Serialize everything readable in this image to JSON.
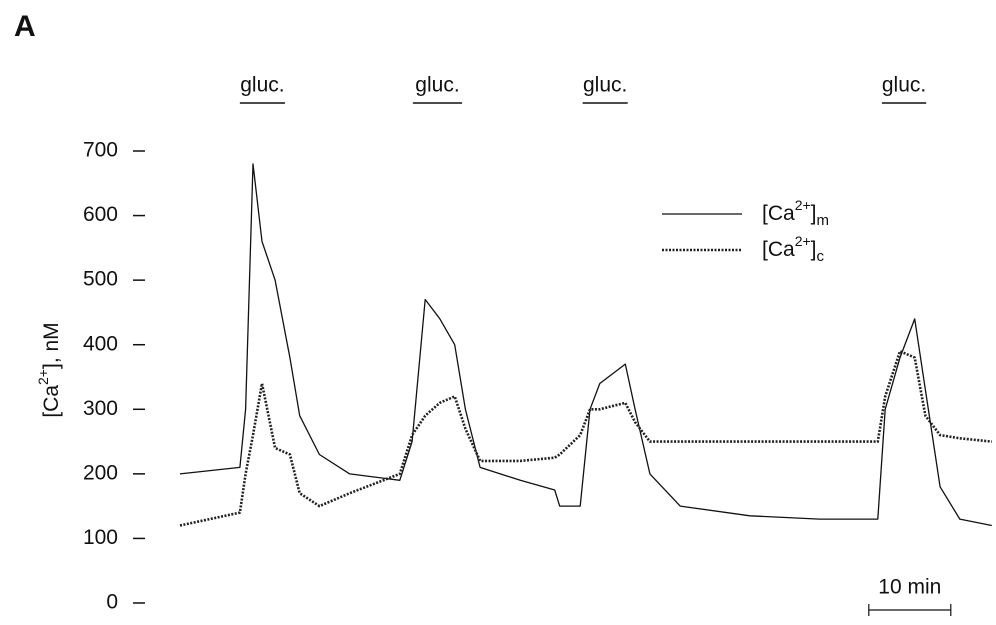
{
  "chart_data": {
    "type": "line",
    "panel_label": "A",
    "y_label": "[Ca2+], nM",
    "ylim": [
      0,
      700
    ],
    "yticks": [
      0,
      100,
      200,
      300,
      400,
      500,
      600,
      700
    ],
    "xlim": [
      0,
      99
    ],
    "x": [
      0,
      7.3,
      8,
      8.9,
      10,
      11.6,
      13.4,
      14.6,
      17,
      20.7,
      26.8,
      28.3,
      29.9,
      31.7,
      33.5,
      34.8,
      36.6,
      41.5,
      45.7,
      46.3,
      48.8,
      50,
      51.2,
      54.3,
      55.5,
      57.3,
      61,
      69.5,
      78,
      85.1,
      86,
      87.8,
      89.6,
      90.9,
      92.7,
      95.1,
      99
    ],
    "series": [
      {
        "name": "[Ca2+]m",
        "color": "#111111",
        "style": "solid",
        "values": [
          200,
          210,
          300,
          680,
          560,
          500,
          380,
          290,
          230,
          200,
          190,
          250,
          470,
          440,
          400,
          300,
          210,
          190,
          175,
          150,
          150,
          300,
          340,
          370,
          300,
          200,
          150,
          135,
          130,
          130,
          300,
          380,
          440,
          330,
          180,
          130,
          120
        ]
      },
      {
        "name": "[Ca2+]c",
        "color": "#222222",
        "style": "dotted",
        "values": [
          120,
          140,
          200,
          260,
          340,
          240,
          230,
          170,
          150,
          170,
          200,
          260,
          290,
          310,
          320,
          270,
          220,
          220,
          225,
          230,
          260,
          300,
          300,
          310,
          280,
          250,
          250,
          250,
          250,
          250,
          320,
          390,
          380,
          290,
          260,
          255,
          250
        ]
      }
    ],
    "annotations": [
      {
        "text": "gluc.",
        "start": 7.3,
        "end": 12.8
      },
      {
        "text": "gluc.",
        "start": 28.4,
        "end": 34.4
      },
      {
        "text": "gluc.",
        "start": 49.1,
        "end": 54.6
      },
      {
        "text": "gluc.",
        "start": 85.6,
        "end": 91
      }
    ],
    "scalebar": {
      "label": "10 min",
      "length": 10,
      "start": 84
    }
  }
}
